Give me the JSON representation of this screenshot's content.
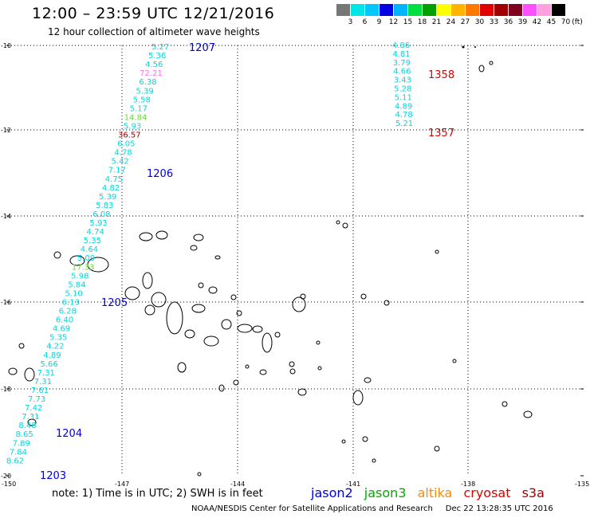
{
  "header": {
    "title": "12:00 – 23:59 UTC 12/21/2016",
    "subtitle": "12 hour collection of altimeter wave heights"
  },
  "colorbar": {
    "colors": [
      "#777777",
      "#00e6e6",
      "#00c8ff",
      "#0000e0",
      "#00b4ff",
      "#00e040",
      "#00a000",
      "#ffff00",
      "#ffb400",
      "#ff7800",
      "#e00000",
      "#a00000",
      "#800020",
      "#ff50ff",
      "#ffa0e0",
      "#000000"
    ],
    "labels": [
      "3",
      "6",
      "9",
      "12",
      "15",
      "18",
      "21",
      "24",
      "27",
      "30",
      "33",
      "36",
      "39",
      "42",
      "45",
      "70",
      "(ft)"
    ]
  },
  "map": {
    "lat_labels": [
      "-10",
      "-12",
      "-14",
      "-16",
      "-18",
      "-20"
    ],
    "lon_labels": [
      "-150",
      "-147",
      "-144",
      "-141",
      "-138",
      "-135"
    ],
    "track_labels": [
      {
        "id": "1207",
        "satellite": "jason2"
      },
      {
        "id": "1206",
        "satellite": "jason2"
      },
      {
        "id": "1205",
        "satellite": "jason2"
      },
      {
        "id": "1204",
        "satellite": "jason2"
      },
      {
        "id": "1203",
        "satellite": "jason2"
      },
      {
        "id": "1358",
        "satellite": "cryosat"
      },
      {
        "id": "1357",
        "satellite": "cryosat"
      }
    ],
    "observations_west": [
      {
        "value": "5.27",
        "color": "#00d8e0"
      },
      {
        "value": "5.36",
        "color": "#00d8e0"
      },
      {
        "value": "4.56",
        "color": "#00d8e0"
      },
      {
        "value": "72.21",
        "color": "#ff78e8"
      },
      {
        "value": "6.38",
        "color": "#00d8e0"
      },
      {
        "value": "5.39",
        "color": "#00d8e0"
      },
      {
        "value": "5.58",
        "color": "#00d8e0"
      },
      {
        "value": "5.17",
        "color": "#00d8e0"
      },
      {
        "value": "14.84",
        "color": "#66dd33"
      },
      {
        "value": "5.93",
        "color": "#00d8e0"
      },
      {
        "value": "36.57",
        "color": "#a00000"
      },
      {
        "value": "6.05",
        "color": "#00d8e0"
      },
      {
        "value": "4.78",
        "color": "#00d8e0"
      },
      {
        "value": "5.42",
        "color": "#00d8e0"
      },
      {
        "value": "7.17",
        "color": "#00d8e0"
      },
      {
        "value": "4.75",
        "color": "#00d8e0"
      },
      {
        "value": "4.82",
        "color": "#00d8e0"
      },
      {
        "value": "5.39",
        "color": "#00d8e0"
      },
      {
        "value": "5.83",
        "color": "#00d8e0"
      },
      {
        "value": "6.08",
        "color": "#00d8e0"
      },
      {
        "value": "5.93",
        "color": "#00d8e0"
      },
      {
        "value": "4.74",
        "color": "#00d8e0"
      },
      {
        "value": "5.35",
        "color": "#00d8e0"
      },
      {
        "value": "4.64",
        "color": "#00d8e0"
      },
      {
        "value": "5.09",
        "color": "#00d8e0"
      },
      {
        "value": "17.33",
        "color": "#66dd33"
      },
      {
        "value": "5.98",
        "color": "#00d8e0"
      },
      {
        "value": "5.84",
        "color": "#00d8e0"
      },
      {
        "value": "5.10",
        "color": "#00d8e0"
      },
      {
        "value": "6.13",
        "color": "#00d8e0"
      },
      {
        "value": "6.28",
        "color": "#00d8e0"
      },
      {
        "value": "6.40",
        "color": "#00d8e0"
      },
      {
        "value": "4.69",
        "color": "#00d8e0"
      },
      {
        "value": "5.35",
        "color": "#00d8e0"
      },
      {
        "value": "4.22",
        "color": "#00d8e0"
      },
      {
        "value": "4.89",
        "color": "#00d8e0"
      },
      {
        "value": "5.66",
        "color": "#00d8e0"
      },
      {
        "value": "7.31",
        "color": "#00d8e0"
      },
      {
        "value": "7.31",
        "color": "#00d8e0"
      },
      {
        "value": "7.61",
        "color": "#00d8e0"
      },
      {
        "value": "7.73",
        "color": "#00d8e0"
      },
      {
        "value": "7.42",
        "color": "#00d8e0"
      },
      {
        "value": "7.31",
        "color": "#00d8e0"
      },
      {
        "value": "8.48",
        "color": "#00d8e0"
      },
      {
        "value": "8.65",
        "color": "#00d8e0"
      },
      {
        "value": "7.89",
        "color": "#00d8e0"
      },
      {
        "value": "7.84",
        "color": "#00d8e0"
      },
      {
        "value": "8.62",
        "color": "#00d8e0"
      }
    ],
    "observations_east": [
      {
        "value": "4.86",
        "color": "#00d8e0"
      },
      {
        "value": "4.81",
        "color": "#00d8e0"
      },
      {
        "value": "3.79",
        "color": "#00d8e0"
      },
      {
        "value": "4.66",
        "color": "#00d8e0"
      },
      {
        "value": "3.43",
        "color": "#00d8e0"
      },
      {
        "value": "5.28",
        "color": "#00d8e0"
      },
      {
        "value": "5.11",
        "color": "#00d8e0"
      },
      {
        "value": "4.89",
        "color": "#00d8e0"
      },
      {
        "value": "4.78",
        "color": "#00d8e0"
      },
      {
        "value": "5.21",
        "color": "#00d8e0"
      }
    ]
  },
  "note": "note:  1) Time is in UTC;  2) SWH is in feet",
  "legend": [
    {
      "label": "jason2",
      "color": "#0000dd"
    },
    {
      "label": "jason3",
      "color": "#00aa00"
    },
    {
      "label": "altika",
      "color": "#ff8800"
    },
    {
      "label": "cryosat",
      "color": "#dd0000"
    },
    {
      "label": "s3a",
      "color": "#990000"
    }
  ],
  "footer": {
    "credit": "NOAA/NESDIS Center for Satellite Applications and Research",
    "timestamp": "Dec 22 13:28:35 UTC 2016"
  }
}
